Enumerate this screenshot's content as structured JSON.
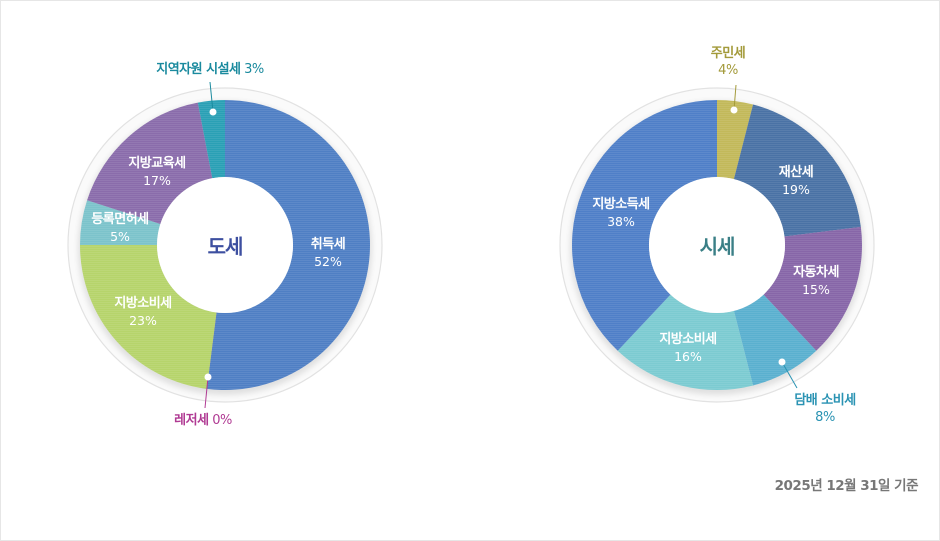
{
  "chart_data": [
    {
      "type": "pie",
      "variant": "donut",
      "title": "도세",
      "slices": [
        {
          "label": "취득세",
          "value": 52,
          "color": "#4f7fc4"
        },
        {
          "label": "레저세",
          "value": 0,
          "color": "#b36bb0"
        },
        {
          "label": "지방소비세",
          "value": 23,
          "color": "#b6d46b"
        },
        {
          "label": "등록면허세",
          "value": 5,
          "color": "#7cc3cb"
        },
        {
          "label": "지방교육세",
          "value": 17,
          "color": "#8a6cab"
        },
        {
          "label": "지역자원 시설세",
          "value": 3,
          "color": "#2aa0b5"
        }
      ]
    },
    {
      "type": "pie",
      "variant": "donut",
      "title": "시세",
      "slices": [
        {
          "label": "주민세",
          "value": 4,
          "color": "#c2b95a"
        },
        {
          "label": "재산세",
          "value": 19,
          "color": "#4a72a5"
        },
        {
          "label": "자동차세",
          "value": 15,
          "color": "#8766a8"
        },
        {
          "label": "담배 소비세",
          "value": 8,
          "color": "#5ab0cf"
        },
        {
          "label": "지방소비세",
          "value": 16,
          "color": "#7ccbd1"
        },
        {
          "label": "지방소득세",
          "value": 38,
          "color": "#4f7fc8"
        }
      ]
    }
  ],
  "left": {
    "center_title": "도세",
    "inner_labels": [
      {
        "name": "취득세",
        "pct": "52%"
      },
      {
        "name": "지방소비세",
        "pct": "23%"
      },
      {
        "name": "등록면허세",
        "pct": "5%"
      },
      {
        "name": "지방교육세",
        "pct": "17%"
      }
    ],
    "callouts": [
      {
        "name": "지역자원 시설세",
        "pct": "3%",
        "color": "#1a8a9e"
      },
      {
        "name": "레저세",
        "pct": "0%",
        "color": "#b03a93"
      }
    ]
  },
  "right": {
    "center_title": "시세",
    "inner_labels": [
      {
        "name": "재산세",
        "pct": "19%"
      },
      {
        "name": "자동차세",
        "pct": "15%"
      },
      {
        "name": "지방소비세",
        "pct": "16%"
      },
      {
        "name": "지방소득세",
        "pct": "38%"
      }
    ],
    "callouts": [
      {
        "name": "주민세",
        "pct": "4%",
        "color": "#a39a3a"
      },
      {
        "name": "담배 소비세",
        "pct": "8%",
        "color": "#2a93b3"
      }
    ]
  },
  "footer": {
    "basis_date": "2025년 12월 31일 기준"
  },
  "colors": {
    "left_title": "#3d4fa0",
    "right_title": "#3a7f86",
    "note": "#777777"
  }
}
